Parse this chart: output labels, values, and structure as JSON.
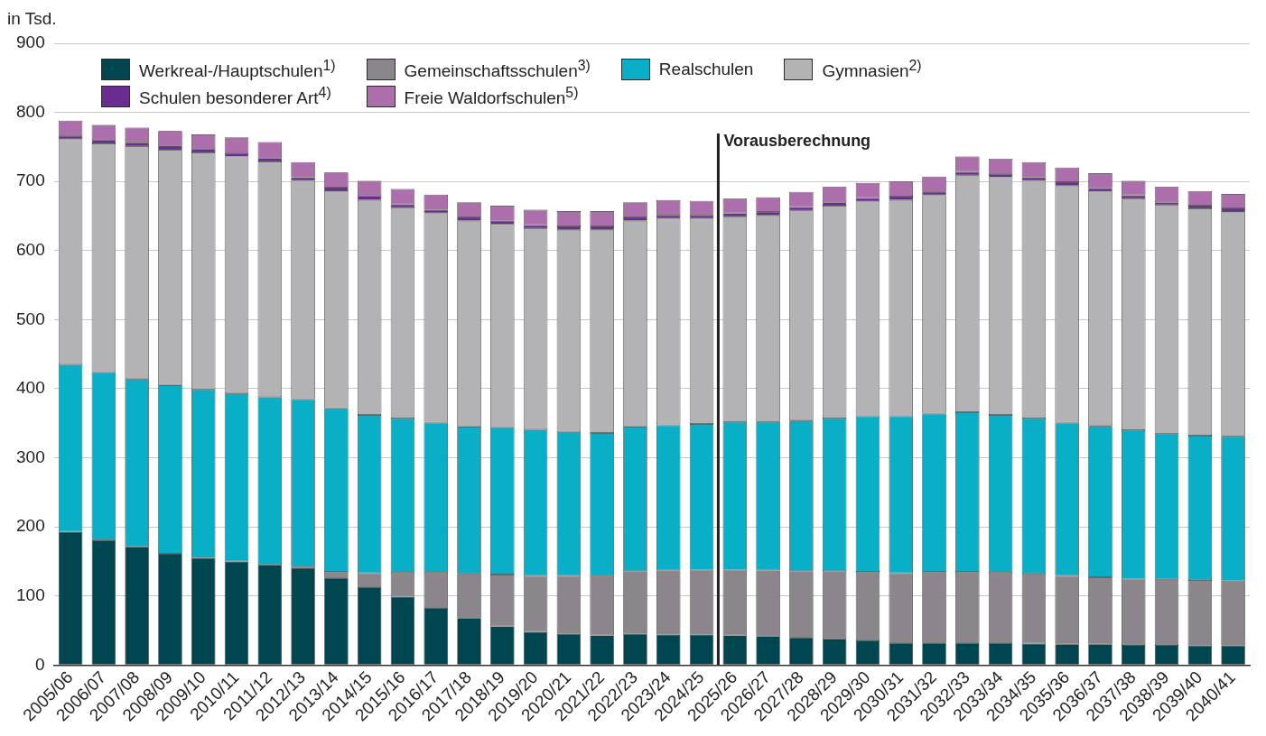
{
  "chart_data": {
    "type": "bar",
    "stacked": true,
    "ylabel": "in Tsd.",
    "ylim": [
      0,
      900
    ],
    "yticks": [
      0,
      100,
      200,
      300,
      400,
      500,
      600,
      700,
      800,
      900
    ],
    "grid": "y",
    "legend": "top left",
    "categories": [
      "2005/06",
      "2006/07",
      "2007/08",
      "2008/09",
      "2009/10",
      "2010/11",
      "2011/12",
      "2012/13",
      "2013/14",
      "2014/15",
      "2015/16",
      "2016/17",
      "2017/18",
      "2018/19",
      "2019/20",
      "2020/21",
      "2021/22",
      "2022/23",
      "2023/24",
      "2024/25",
      "2025/26",
      "2026/27",
      "2027/28",
      "2028/29",
      "2029/30",
      "2030/31",
      "2031/32",
      "2032/33",
      "2033/34",
      "2034/35",
      "2035/36",
      "2036/37",
      "2037/38",
      "2038/39",
      "2039/40",
      "2040/41"
    ],
    "series": [
      {
        "name": "Werkreal-/Hauptschulen$^{1)}$",
        "color": "#004651",
        "values": [
          193,
          181,
          171,
          161,
          155,
          150,
          145,
          140,
          126,
          113,
          99,
          83,
          68,
          56,
          48,
          45,
          43,
          45,
          44,
          44,
          43,
          42,
          40,
          38,
          36,
          32,
          32,
          32,
          32,
          31,
          30,
          30,
          29,
          29,
          28,
          28
        ]
      },
      {
        "name": "Gemeinschaftsschulen$^{3)}$",
        "color": "#8b868b",
        "values": [
          0,
          0,
          0,
          0,
          0,
          0,
          0,
          3,
          9,
          20,
          35,
          51,
          64,
          75,
          81,
          84,
          87,
          91,
          93,
          94,
          95,
          95,
          96,
          98,
          99,
          101,
          103,
          103,
          102,
          101,
          99,
          97,
          96,
          95,
          95,
          94
        ]
      },
      {
        "name": "Realschulen",
        "color": "#08afc7",
        "values": [
          242,
          243,
          243,
          244,
          244,
          243,
          243,
          242,
          237,
          229,
          223,
          217,
          213,
          213,
          212,
          208,
          206,
          209,
          210,
          211,
          214,
          215,
          218,
          221,
          225,
          227,
          229,
          231,
          228,
          225,
          222,
          219,
          215,
          211,
          209,
          209
        ]
      },
      {
        "name": "Gymnasien$^{2)}$",
        "color": "#b3b3b6",
        "values": [
          326,
          331,
          337,
          341,
          343,
          343,
          341,
          316,
          314,
          311,
          305,
          303,
          298,
          294,
          291,
          293,
          294,
          298,
          299,
          297,
          297,
          299,
          304,
          308,
          311,
          313,
          316,
          343,
          344,
          344,
          343,
          340,
          335,
          331,
          329,
          325
        ]
      },
      {
        "name": "Schulen besonderer Art$^{4)}$",
        "color": "#6a2c91",
        "values": [
          5,
          5,
          5,
          5,
          5,
          5,
          5,
          5,
          5,
          6,
          5,
          5,
          5,
          5,
          5,
          5,
          5,
          5,
          5,
          5,
          5,
          5,
          5,
          5,
          5,
          5,
          5,
          5,
          5,
          5,
          5,
          4,
          5,
          4,
          4,
          5
        ]
      },
      {
        "name": "Freie Waldorfschulen$^{5)}$",
        "color": "#ac6fac",
        "values": [
          22,
          22,
          22,
          22,
          21,
          23,
          23,
          22,
          22,
          22,
          22,
          22,
          22,
          22,
          22,
          22,
          22,
          22,
          22,
          21,
          21,
          21,
          22,
          22,
          22,
          22,
          22,
          22,
          22,
          22,
          21,
          22,
          21,
          22,
          21,
          21
        ]
      }
    ],
    "ref_lines": [
      {
        "axis": "x",
        "value": "2025/26",
        "label": "Vorausberechnung",
        "color": "#222222"
      }
    ]
  }
}
